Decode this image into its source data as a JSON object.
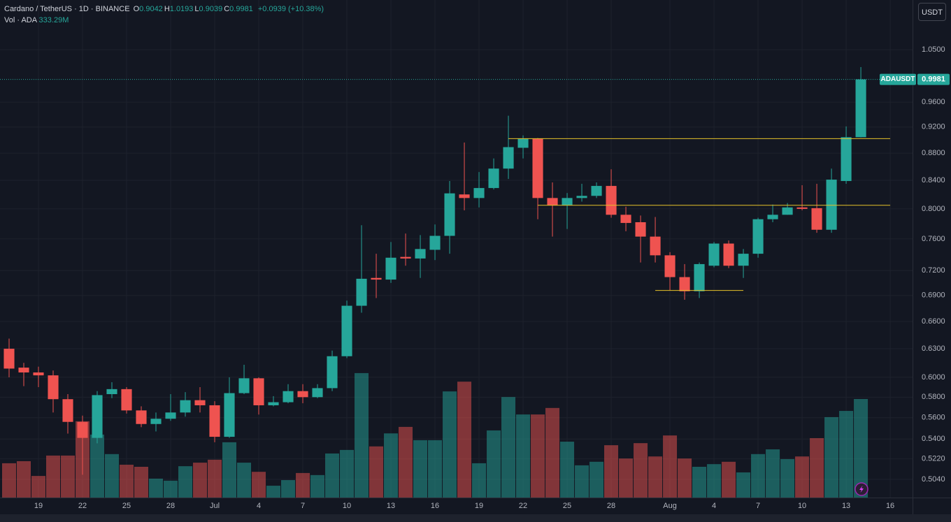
{
  "chart_data": {
    "type": "candlestick",
    "header": {
      "symbol": "Cardano / TetherUS · 1D · BINANCE",
      "ohlc": [
        {
          "label": "O",
          "value": "0.9042"
        },
        {
          "label": "H",
          "value": "1.0193"
        },
        {
          "label": "L",
          "value": "0.9039"
        },
        {
          "label": "C",
          "value": "0.9981"
        }
      ],
      "change": "+0.0939 (+10.38%)"
    },
    "volume_legend": {
      "label": "Vol · ADA",
      "value": "333.29M"
    },
    "currency_button": "USDT",
    "symbol_tag": "ADAUSDT",
    "last_price": 0.9981,
    "last_price_label": "0.9981",
    "up_color": "#26a69a",
    "down_color": "#ef5350",
    "open": [
      0.63,
      0.61,
      0.605,
      0.602,
      0.578,
      0.556,
      0.541,
      0.583,
      0.588,
      0.567,
      0.554,
      0.559,
      0.565,
      0.577,
      0.572,
      0.542,
      0.584,
      0.599,
      0.572,
      0.575,
      0.586,
      0.58,
      0.589,
      0.622,
      0.678,
      0.711,
      0.709,
      0.737,
      0.735,
      0.746,
      0.764,
      0.82,
      0.815,
      0.829,
      0.857,
      0.888,
      0.902,
      0.815,
      0.805,
      0.815,
      0.818,
      0.832,
      0.792,
      0.782,
      0.763,
      0.739,
      0.712,
      0.695,
      0.726,
      0.754,
      0.726,
      0.741,
      0.786,
      0.792,
      0.802,
      0.801,
      0.772,
      0.839,
      0.9042
    ],
    "high": [
      0.641,
      0.615,
      0.611,
      0.607,
      0.583,
      0.562,
      0.586,
      0.595,
      0.59,
      0.571,
      0.565,
      0.583,
      0.585,
      0.59,
      0.576,
      0.6,
      0.613,
      0.6,
      0.581,
      0.593,
      0.593,
      0.593,
      0.628,
      0.684,
      0.778,
      0.741,
      0.756,
      0.767,
      0.765,
      0.779,
      0.839,
      0.896,
      0.852,
      0.872,
      0.938,
      0.907,
      0.903,
      0.837,
      0.822,
      0.835,
      0.837,
      0.856,
      0.803,
      0.791,
      0.789,
      0.743,
      0.728,
      0.73,
      0.756,
      0.758,
      0.747,
      0.788,
      0.806,
      0.808,
      0.833,
      0.835,
      0.857,
      0.921,
      1.0193
    ],
    "low": [
      0.6,
      0.591,
      0.59,
      0.565,
      0.545,
      0.508,
      0.536,
      0.579,
      0.564,
      0.551,
      0.547,
      0.557,
      0.561,
      0.565,
      0.537,
      0.541,
      0.583,
      0.563,
      0.571,
      0.574,
      0.574,
      0.579,
      0.586,
      0.62,
      0.67,
      0.687,
      0.705,
      0.726,
      0.711,
      0.733,
      0.741,
      0.798,
      0.802,
      0.827,
      0.842,
      0.872,
      0.786,
      0.763,
      0.773,
      0.81,
      0.815,
      0.788,
      0.77,
      0.73,
      0.73,
      0.696,
      0.685,
      0.687,
      0.724,
      0.723,
      0.711,
      0.736,
      0.782,
      0.792,
      0.798,
      0.768,
      0.768,
      0.835,
      0.9039
    ],
    "close": [
      0.609,
      0.605,
      0.602,
      0.578,
      0.556,
      0.541,
      0.582,
      0.588,
      0.567,
      0.554,
      0.559,
      0.565,
      0.577,
      0.572,
      0.542,
      0.584,
      0.599,
      0.572,
      0.575,
      0.586,
      0.58,
      0.589,
      0.622,
      0.678,
      0.71,
      0.709,
      0.736,
      0.735,
      0.747,
      0.764,
      0.8215,
      0.815,
      0.829,
      0.857,
      0.889,
      0.902,
      0.815,
      0.805,
      0.815,
      0.818,
      0.832,
      0.792,
      0.781,
      0.763,
      0.739,
      0.712,
      0.695,
      0.728,
      0.754,
      0.726,
      0.741,
      0.786,
      0.792,
      0.802,
      0.8,
      0.772,
      0.841,
      0.9042,
      0.9981
    ],
    "volume": [
      116,
      123,
      73,
      142,
      142,
      258,
      213,
      147,
      111,
      104,
      64,
      57,
      106,
      118,
      128,
      187,
      118,
      87,
      40,
      59,
      83,
      76,
      149,
      161,
      421,
      173,
      217,
      239,
      194,
      194,
      359,
      392,
      116,
      227,
      340,
      281,
      281,
      303,
      189,
      109,
      121,
      177,
      132,
      184,
      139,
      210,
      132,
      104,
      113,
      121,
      85,
      147,
      163,
      130,
      139,
      201,
      272,
      293,
      333.29
    ],
    "ylim": [
      0.4886,
      1.143
    ],
    "log_scale": true,
    "vol_ylim": [
      0,
      1683
    ],
    "xlim": [
      -0.619,
      61.52
    ],
    "grid": true,
    "yticks": [
      {
        "value": 1.05,
        "label": "1.0500"
      },
      {
        "value": 0.96,
        "label": "0.9600"
      },
      {
        "value": 0.92,
        "label": "0.9200"
      },
      {
        "value": 0.88,
        "label": "0.8800"
      },
      {
        "value": 0.84,
        "label": "0.8400"
      },
      {
        "value": 0.8,
        "label": "0.8000"
      },
      {
        "value": 0.76,
        "label": "0.7600"
      },
      {
        "value": 0.72,
        "label": "0.7200"
      },
      {
        "value": 0.69,
        "label": "0.6900"
      },
      {
        "value": 0.66,
        "label": "0.6600"
      },
      {
        "value": 0.63,
        "label": "0.6300"
      },
      {
        "value": 0.6,
        "label": "0.6000"
      },
      {
        "value": 0.58,
        "label": "0.5800"
      },
      {
        "value": 0.56,
        "label": "0.5600"
      },
      {
        "value": 0.54,
        "label": "0.5400"
      },
      {
        "value": 0.522,
        "label": "0.5220"
      },
      {
        "value": 0.504,
        "label": "0.5040"
      }
    ],
    "xticks": [
      {
        "value": 2,
        "label": "19"
      },
      {
        "value": 5,
        "label": "22"
      },
      {
        "value": 8,
        "label": "25"
      },
      {
        "value": 11,
        "label": "28"
      },
      {
        "value": 14,
        "label": "Jul"
      },
      {
        "value": 17,
        "label": "4"
      },
      {
        "value": 20,
        "label": "7"
      },
      {
        "value": 23,
        "label": "10"
      },
      {
        "value": 26,
        "label": "13"
      },
      {
        "value": 29,
        "label": "16"
      },
      {
        "value": 32,
        "label": "19"
      },
      {
        "value": 35,
        "label": "22"
      },
      {
        "value": 38,
        "label": "25"
      },
      {
        "value": 41,
        "label": "28"
      },
      {
        "value": 45,
        "label": "Aug"
      },
      {
        "value": 48,
        "label": "4"
      },
      {
        "value": 51,
        "label": "7"
      },
      {
        "value": 54,
        "label": "10"
      },
      {
        "value": 57,
        "label": "13"
      },
      {
        "value": 60,
        "label": "16"
      }
    ],
    "hlines": [
      {
        "value": 0.902,
        "from": 34,
        "to": 60,
        "color": "#e6c229"
      },
      {
        "value": 0.805,
        "from": 36,
        "to": 60,
        "color": "#e6c229"
      },
      {
        "value": 0.696,
        "from": 44,
        "to": 50,
        "color": "#e6c229"
      }
    ]
  }
}
